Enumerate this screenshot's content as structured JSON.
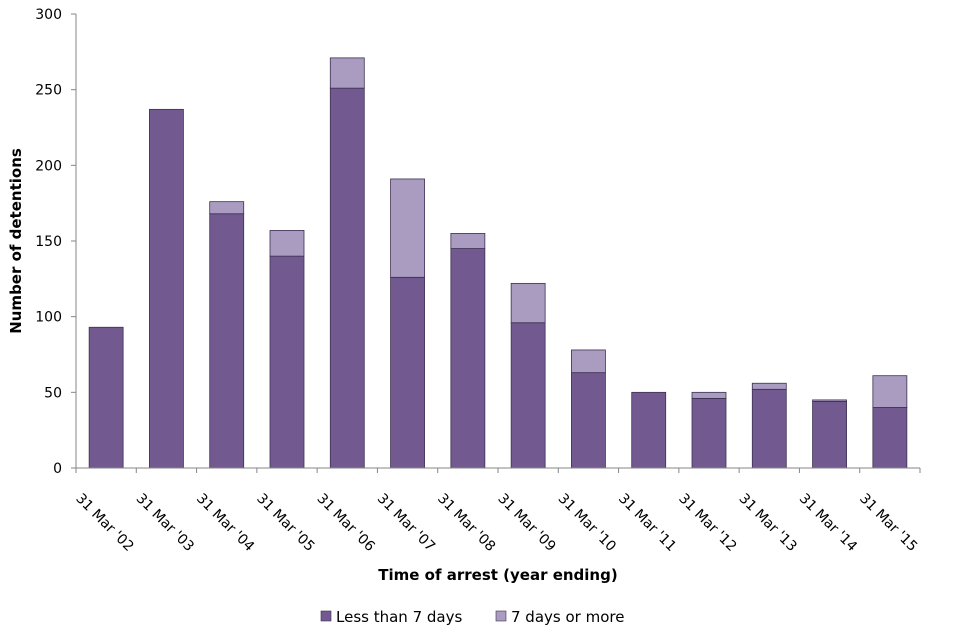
{
  "chart_data": {
    "type": "bar",
    "stacked": true,
    "title": "",
    "xlabel": "Time of arrest (year ending)",
    "ylabel": "Number of detentions",
    "ylim": [
      0,
      300
    ],
    "yticks": [
      0,
      50,
      100,
      150,
      200,
      250,
      300
    ],
    "grid": false,
    "legend_position": "bottom",
    "categories": [
      "31 Mar '02",
      "31 Mar '03",
      "31 Mar '04",
      "31 Mar '05",
      "31 Mar '06",
      "31 Mar '07",
      "31 Mar '08",
      "31 Mar '09",
      "31 Mar '10",
      "31 Mar '11",
      "31 Mar '12",
      "31 Mar '13",
      "31 Mar '14",
      "31 Mar '15"
    ],
    "series": [
      {
        "name": "Less than 7 days",
        "color": "#725a91",
        "values": [
          93,
          237,
          168,
          140,
          251,
          126,
          145,
          96,
          63,
          50,
          46,
          52,
          44,
          40
        ]
      },
      {
        "name": "7 days or more",
        "color": "#a99cc0",
        "values": [
          0,
          0,
          8,
          17,
          20,
          65,
          10,
          26,
          15,
          0,
          4,
          4,
          1,
          21
        ]
      }
    ]
  }
}
